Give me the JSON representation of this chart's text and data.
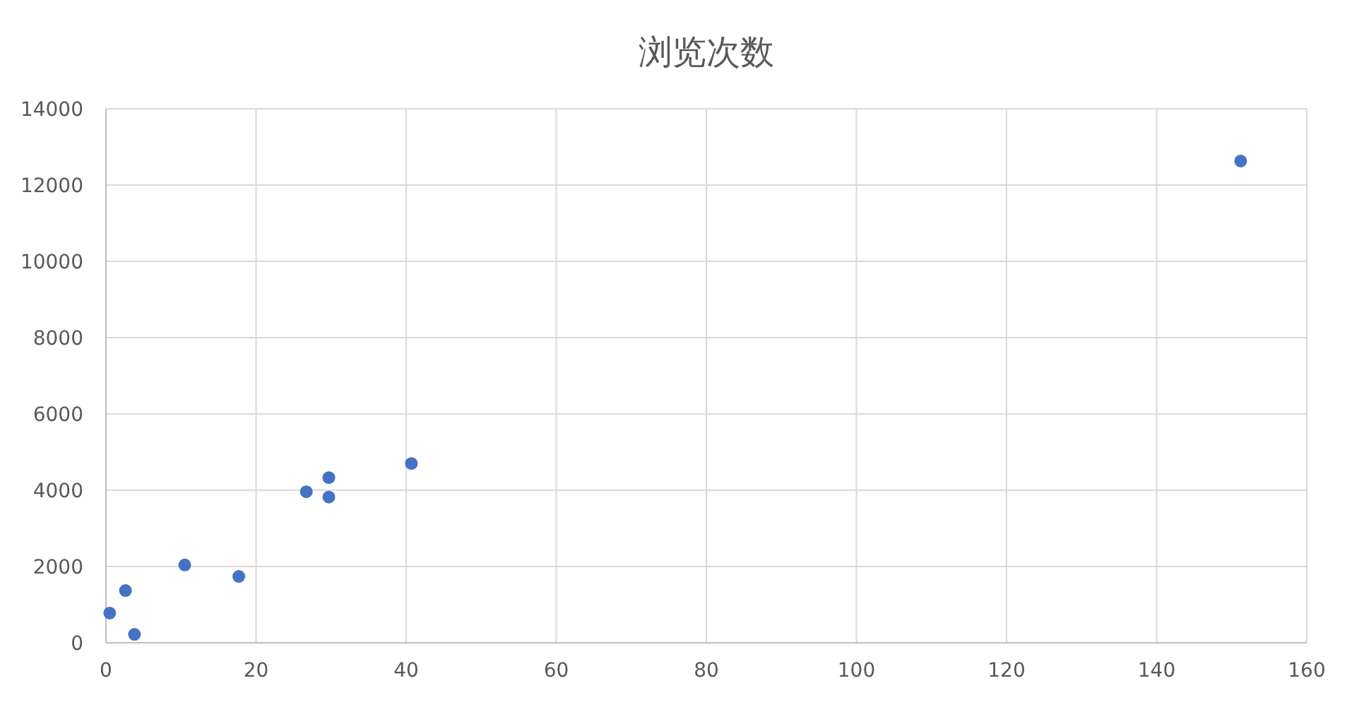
{
  "chart_data": {
    "type": "scatter",
    "title": "浏览次数",
    "x": [
      0.5,
      2.6,
      3.8,
      10.5,
      17.7,
      26.7,
      29.7,
      29.7,
      40.7,
      151.2
    ],
    "values": [
      780,
      1370,
      220,
      2040,
      1740,
      3960,
      4330,
      3820,
      4700,
      12630
    ],
    "color": "#4472c4",
    "marker": "circle",
    "xlim": [
      0,
      160
    ],
    "xticks": [
      0,
      20,
      40,
      60,
      80,
      100,
      120,
      140,
      160
    ],
    "ylim": [
      0,
      14000
    ],
    "yticks": [
      0,
      2000,
      4000,
      6000,
      8000,
      10000,
      12000,
      14000
    ],
    "grid": true
  }
}
